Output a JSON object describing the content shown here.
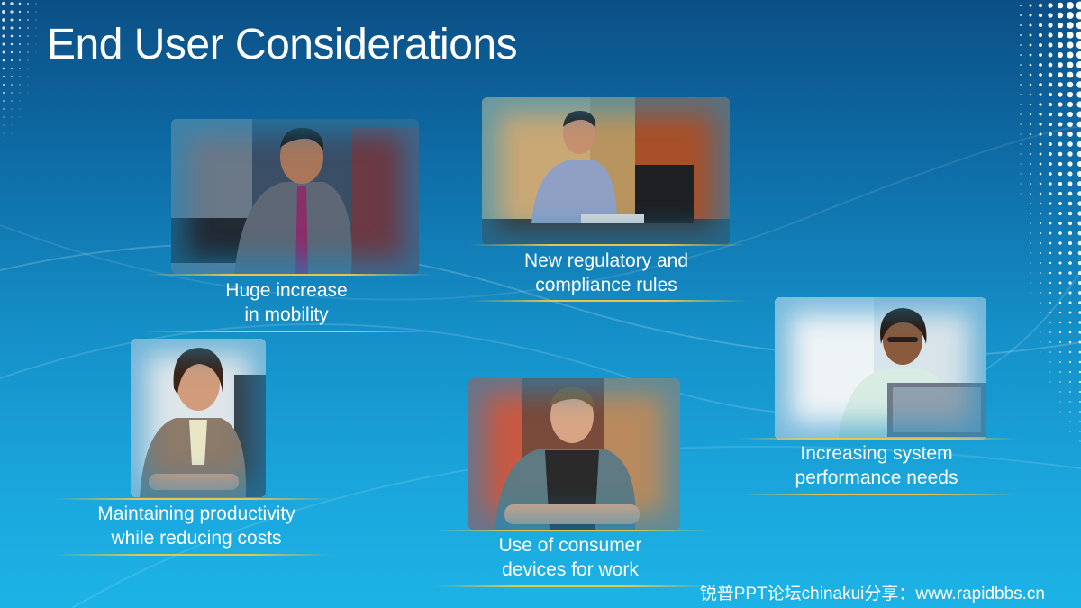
{
  "slide": {
    "title": "End User Considerations",
    "footer": "锐普PPT论坛chinakui分享：www.rapidbbs.cn"
  },
  "cards": [
    {
      "id": "mobility",
      "line1": "Huge increase",
      "line2": "in mobility",
      "photo": "businessman-photo"
    },
    {
      "id": "regulatory",
      "line1": "New regulatory and",
      "line2": "compliance rules",
      "photo": "office-worker-photo"
    },
    {
      "id": "productivity",
      "line1": "Maintaining productivity",
      "line2": "while reducing costs",
      "photo": "businesswoman-photo"
    },
    {
      "id": "consumer",
      "line1": "Use of consumer",
      "line2": "devices for work",
      "photo": "shop-worker-photo"
    },
    {
      "id": "performance",
      "line1": "Increasing system",
      "line2": "performance needs",
      "photo": "woman-laptop-photo"
    }
  ],
  "colors": {
    "background": "#1590c8",
    "accent_rule": "#e9c64a",
    "text": "#ffffff"
  }
}
